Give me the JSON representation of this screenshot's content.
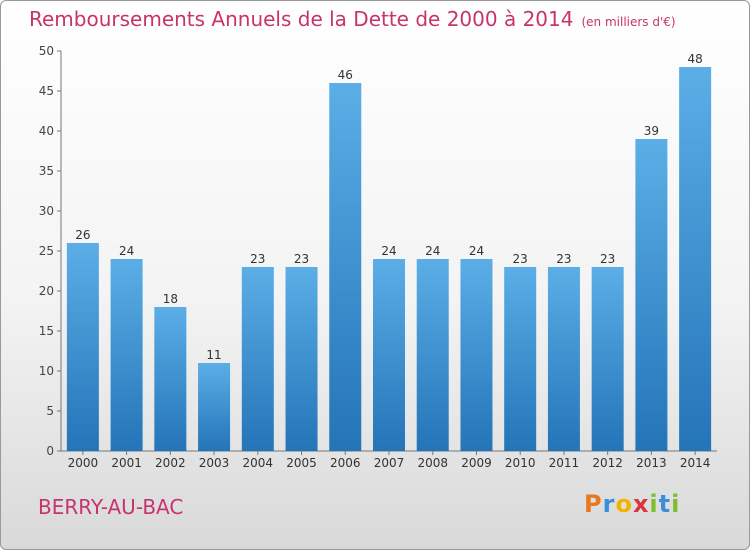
{
  "title": "Remboursements Annuels de la Dette de 2000 à 2014",
  "subtitle": "(en milliers d'€)",
  "place": "BERRY-AU-BAC",
  "logo": {
    "letters": [
      "P",
      "r",
      "o",
      "x",
      "i",
      "t",
      "i"
    ],
    "colors": [
      "#e87722",
      "#3a8fd9",
      "#f0b400",
      "#d9353a",
      "#7cbf2e",
      "#3a8fd9",
      "#7cbf2e"
    ]
  },
  "colors": {
    "title": "#c8336b",
    "bar_top": "#5baee6",
    "bar_bottom": "#2474b8"
  },
  "chart_data": {
    "type": "bar",
    "categories": [
      "2000",
      "2001",
      "2002",
      "2003",
      "2004",
      "2005",
      "2006",
      "2007",
      "2008",
      "2009",
      "2010",
      "2011",
      "2012",
      "2013",
      "2014"
    ],
    "values": [
      26,
      24,
      18,
      11,
      23,
      23,
      46,
      24,
      24,
      24,
      23,
      23,
      23,
      39,
      48
    ],
    "ylim": [
      0,
      50
    ],
    "yticks": [
      0,
      5,
      10,
      15,
      20,
      25,
      30,
      35,
      40,
      45,
      50
    ],
    "title": "Remboursements Annuels de la Dette de 2000 à 2014",
    "subtitle": "(en milliers d'€)",
    "grid": false
  }
}
